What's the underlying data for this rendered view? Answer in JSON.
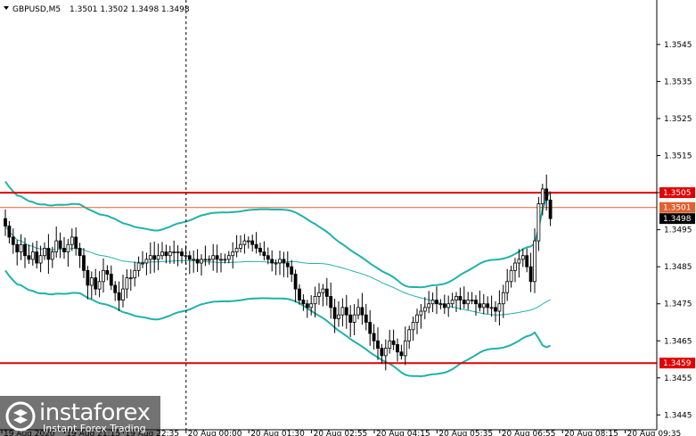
{
  "header": {
    "symbol": "GBPUSD,M5",
    "ohlc": "1.3501 1.3502 1.3498 1.3498"
  },
  "watermark": {
    "brand": "instaforex",
    "tagline": "Instant Forex Trading",
    "logo_icon": "instaforex-logo-icon"
  },
  "colors": {
    "candle": "#000000",
    "band": "#20b2aa",
    "ma": "#20b2aa",
    "level": "#e00000",
    "price_line": "#e06030"
  },
  "chart_data": {
    "type": "candlestick",
    "title": "GBPUSD,M5",
    "ylim": [
      1.3441,
      1.3557
    ],
    "y_ticks": [
      "1.3545",
      "1.3535",
      "1.3525",
      "1.3515",
      "1.3505",
      "1.3495",
      "1.3485",
      "1.3475",
      "1.3465",
      "1.3455",
      "1.3445"
    ],
    "x_ticks": [
      "19 Aug 2020",
      "19 Aug 21:15",
      "19 Aug 22:35",
      "20 Aug 00:00",
      "20 Aug 01:30",
      "20 Aug 02:55",
      "20 Aug 04:15",
      "20 Aug 05:35",
      "20 Aug 06:55",
      "20 Aug 08:15",
      "20 Aug 09:35"
    ],
    "x_tick_index": [
      0,
      16,
      31,
      47,
      63,
      79,
      95,
      111,
      127,
      143,
      159
    ],
    "vertical_separator_index": 47,
    "price_tags": [
      {
        "label": "1.3505",
        "value": 1.3505,
        "kind": "level"
      },
      {
        "label": "1.3501",
        "value": 1.3501,
        "kind": "ask"
      },
      {
        "label": "1.3498",
        "value": 1.3498,
        "kind": "bid"
      },
      {
        "label": "1.3459",
        "value": 1.3459,
        "kind": "level"
      }
    ],
    "levels": [
      1.3505,
      1.3459
    ],
    "close": [
      1.3496,
      1.3493,
      1.3491,
      1.3489,
      1.3491,
      1.3488,
      1.3487,
      1.3489,
      1.3486,
      1.3488,
      1.349,
      1.3487,
      1.3489,
      1.3492,
      1.349,
      1.3489,
      1.3491,
      1.3493,
      1.349,
      1.3488,
      1.3484,
      1.348,
      1.3482,
      1.3479,
      1.3481,
      1.3484,
      1.3483,
      1.348,
      1.3478,
      1.3476,
      1.3479,
      1.3482,
      1.3482,
      1.3484,
      1.3486,
      1.3486,
      1.3487,
      1.3488,
      1.3487,
      1.3488,
      1.3489,
      1.3488,
      1.3489,
      1.3489,
      1.3489,
      1.3488,
      1.3488,
      1.3487,
      1.3487,
      1.3486,
      1.3487,
      1.3487,
      1.3487,
      1.3488,
      1.3487,
      1.3487,
      1.3487,
      1.3488,
      1.3489,
      1.349,
      1.3491,
      1.3492,
      1.3492,
      1.3491,
      1.349,
      1.3489,
      1.3488,
      1.3487,
      1.3486,
      1.3486,
      1.3487,
      1.3486,
      1.3485,
      1.3483,
      1.3479,
      1.3476,
      1.3475,
      1.3474,
      1.3475,
      1.3477,
      1.3478,
      1.3479,
      1.3477,
      1.3474,
      1.3471,
      1.3472,
      1.3474,
      1.3472,
      1.347,
      1.3472,
      1.3474,
      1.3472,
      1.347,
      1.3467,
      1.3465,
      1.3463,
      1.3461,
      1.3463,
      1.3465,
      1.3464,
      1.3462,
      1.3461,
      1.3465,
      1.3468,
      1.347,
      1.3472,
      1.3473,
      1.3474,
      1.3475,
      1.3476,
      1.3475,
      1.3475,
      1.3474,
      1.3475,
      1.3476,
      1.3477,
      1.3476,
      1.3475,
      1.3476,
      1.3476,
      1.3475,
      1.3474,
      1.3475,
      1.3474,
      1.3474,
      1.3473,
      1.3475,
      1.3478,
      1.3481,
      1.3484,
      1.3486,
      1.3487,
      1.3488,
      1.3485,
      1.3481,
      1.3492,
      1.3502,
      1.3506,
      1.3503,
      1.3498
    ]
  }
}
